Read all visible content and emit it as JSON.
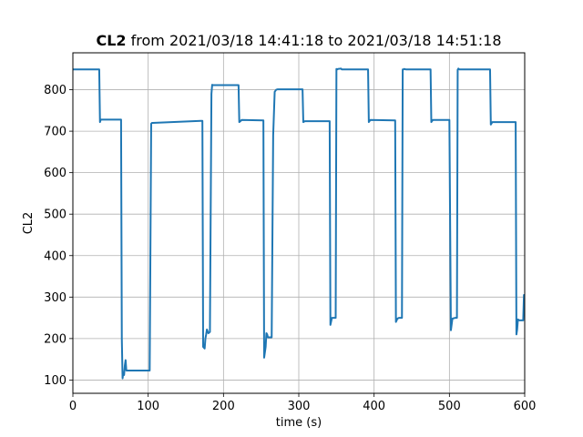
{
  "chart_data": {
    "type": "line",
    "title": {
      "bold": "CL2",
      "rest": " from 2021/03/18 14:41:18 to 2021/03/18 14:51:18"
    },
    "xlabel": "time (s)",
    "ylabel": "CL2",
    "xlim": [
      0,
      600
    ],
    "ylim": [
      68,
      889
    ],
    "xticks": [
      0,
      100,
      200,
      300,
      400,
      500,
      600
    ],
    "yticks": [
      100,
      200,
      300,
      400,
      500,
      600,
      700,
      800
    ],
    "grid": true,
    "series_color": "#1f77b4",
    "series": [
      {
        "x": [
          0,
          34,
          35,
          36,
          37,
          64,
          65,
          66,
          67,
          68,
          69,
          70,
          71,
          72,
          102,
          104,
          105,
          106,
          170,
          172,
          173,
          175,
          176,
          177,
          178,
          180,
          182,
          184,
          185,
          186,
          220,
          221,
          223,
          224,
          253,
          254,
          256,
          257,
          258,
          259,
          260,
          264,
          266,
          268,
          270,
          272,
          305,
          306,
          308,
          310,
          341,
          342,
          344,
          347,
          349,
          350,
          351,
          352,
          356,
          357,
          392,
          393,
          395,
          428,
          429,
          431,
          433,
          437,
          438,
          439,
          440,
          442,
          475,
          476,
          478,
          480,
          500,
          502,
          504,
          508,
          510,
          511,
          512,
          513,
          514,
          554,
          555,
          557,
          559,
          588,
          589,
          590,
          591,
          593,
          598,
          599,
          600
        ],
        "y": [
          849,
          849,
          849,
          722,
          728,
          728,
          200,
          104,
          118,
          112,
          135,
          148,
          123,
          123,
          123,
          718,
          720,
          720,
          725,
          725,
          180,
          176,
          200,
          210,
          222,
          213,
          216,
          790,
          812,
          811,
          811,
          722,
          725,
          727,
          726,
          154,
          180,
          213,
          210,
          203,
          203,
          203,
          690,
          795,
          800,
          801,
          801,
          722,
          724,
          724,
          724,
          233,
          250,
          250,
          250,
          850,
          849,
          850,
          851,
          849,
          849,
          722,
          727,
          726,
          240,
          248,
          250,
          250,
          849,
          849,
          850,
          849,
          849,
          722,
          727,
          727,
          727,
          220,
          248,
          250,
          250,
          848,
          851,
          849,
          849,
          849,
          716,
          722,
          722,
          722,
          210,
          222,
          246,
          244,
          244,
          305,
          305
        ]
      }
    ]
  }
}
